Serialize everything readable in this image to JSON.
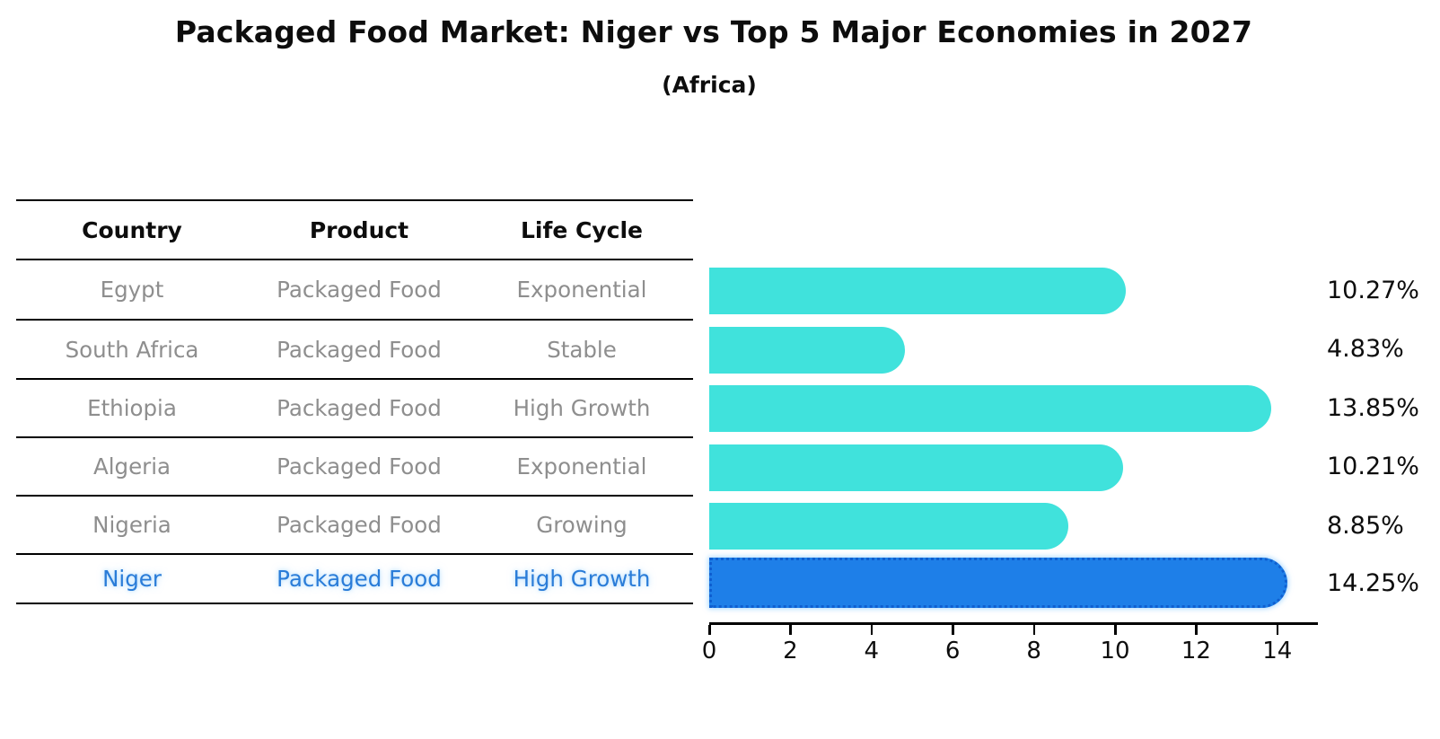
{
  "title": "Packaged Food Market: Niger vs Top 5 Major Economies in 2027",
  "subtitle": "(Africa)",
  "table": {
    "headers": [
      "Country",
      "Product",
      "Life Cycle"
    ],
    "rows": [
      {
        "country": "Egypt",
        "product": "Packaged Food",
        "life_cycle": "Exponential",
        "highlight": false
      },
      {
        "country": "South Africa",
        "product": "Packaged Food",
        "life_cycle": "Stable",
        "highlight": false
      },
      {
        "country": "Ethiopia",
        "product": "Packaged Food",
        "life_cycle": "High Growth",
        "highlight": false
      },
      {
        "country": "Algeria",
        "product": "Packaged Food",
        "life_cycle": "Exponential",
        "highlight": false
      },
      {
        "country": "Nigeria",
        "product": "Packaged Food",
        "life_cycle": "Growing",
        "highlight": false
      },
      {
        "country": "Niger",
        "product": "Packaged Food",
        "life_cycle": "High Growth",
        "highlight": true
      }
    ]
  },
  "chart_data": {
    "type": "bar",
    "orientation": "horizontal",
    "title": "Packaged Food Market: Niger vs Top 5 Major Economies in 2027",
    "subtitle": "(Africa)",
    "categories": [
      "Egypt",
      "South Africa",
      "Ethiopia",
      "Algeria",
      "Nigeria",
      "Niger"
    ],
    "values": [
      10.27,
      4.83,
      13.85,
      10.21,
      8.85,
      14.25
    ],
    "value_labels": [
      "10.27%",
      "4.83%",
      "13.85%",
      "10.21%",
      "8.85%",
      "14.25%"
    ],
    "x_ticks": [
      0,
      2,
      4,
      6,
      8,
      10,
      12,
      14
    ],
    "xlim": [
      0,
      15
    ],
    "xlabel": "",
    "ylabel": "",
    "grid": false,
    "legend": false,
    "bar_color": "#40e2dc",
    "highlight_index": 5,
    "highlight_color": "#1e7fe8",
    "highlight_edge_color": "#0f5fd0",
    "highlight_edge_style": "dotted",
    "text_color_rows": "#8e8e8e",
    "text_color_highlight": "#2a7cd8",
    "axis_color": "#000000"
  }
}
